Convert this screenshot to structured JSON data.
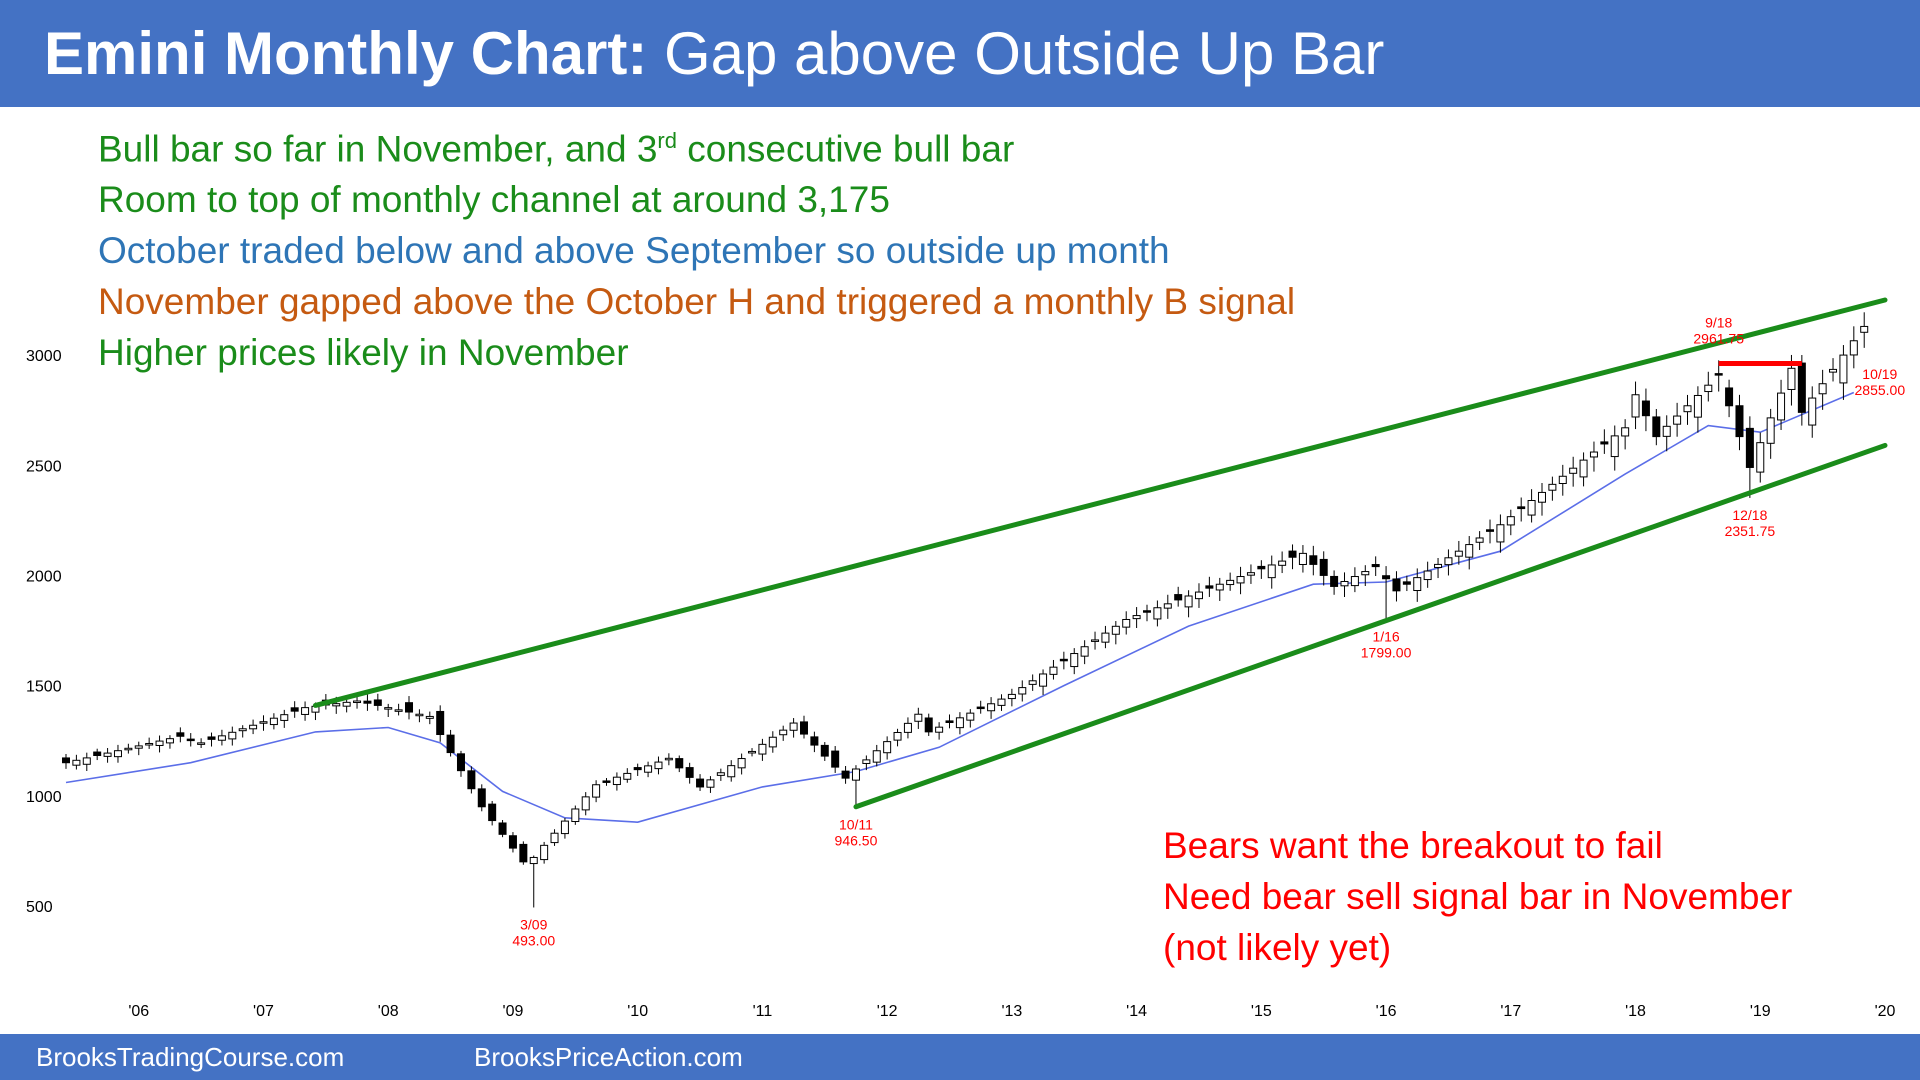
{
  "header": {
    "title_bold": "Emini Monthly Chart:",
    "title_rest": " Gap above Outside Up Bar"
  },
  "notes": [
    {
      "pre": "Bull bar so far in November, and 3",
      "sup": "rd",
      "post": " consecutive bull bar",
      "color": "#1a8c1a"
    },
    {
      "pre": "Room to top of monthly channel at around 3,175",
      "sup": "",
      "post": "",
      "color": "#1a8c1a"
    },
    {
      "pre": "October traded below and above September so outside up month",
      "sup": "",
      "post": "",
      "color": "#2e75b6"
    },
    {
      "pre": "November gapped above the October H and triggered a monthly B signal",
      "sup": "",
      "post": "",
      "color": "#c55a11"
    },
    {
      "pre": "Higher prices likely in November",
      "sup": "",
      "post": "",
      "color": "#1a8c1a"
    }
  ],
  "bears": [
    "Bears want the breakout to fail",
    "Need bear sell signal bar in November",
    "(not likely yet)"
  ],
  "footer": {
    "left": "BrooksTradingCourse.com",
    "right": "BrooksPriceAction.com"
  },
  "chart_data": {
    "type": "candlestick",
    "x_unit": "month",
    "x_range": [
      "2005-06",
      "2020-01"
    ],
    "ylim": [
      300,
      3250
    ],
    "yticks": [
      500,
      1000,
      1500,
      2000,
      2500,
      3000
    ],
    "xticks": [
      {
        "label": "'06",
        "date": "2006-01"
      },
      {
        "label": "'07",
        "date": "2007-01"
      },
      {
        "label": "'08",
        "date": "2008-01"
      },
      {
        "label": "'09",
        "date": "2009-01"
      },
      {
        "label": "'10",
        "date": "2010-01"
      },
      {
        "label": "'11",
        "date": "2011-01"
      },
      {
        "label": "'12",
        "date": "2012-01"
      },
      {
        "label": "'13",
        "date": "2013-01"
      },
      {
        "label": "'14",
        "date": "2014-01"
      },
      {
        "label": "'15",
        "date": "2015-01"
      },
      {
        "label": "'16",
        "date": "2016-01"
      },
      {
        "label": "'17",
        "date": "2017-01"
      },
      {
        "label": "'18",
        "date": "2018-01"
      },
      {
        "label": "'19",
        "date": "2019-01"
      },
      {
        "label": "'20",
        "date": "2020-01"
      }
    ],
    "close_path": [
      [
        "2005-06",
        1150
      ],
      [
        "2006-05",
        1270
      ],
      [
        "2006-07",
        1240
      ],
      [
        "2007-05",
        1400
      ],
      [
        "2007-10",
        1430
      ],
      [
        "2008-05",
        1360
      ],
      [
        "2008-10",
        950
      ],
      [
        "2009-02",
        700
      ],
      [
        "2009-03",
        720
      ],
      [
        "2009-09",
        1050
      ],
      [
        "2010-04",
        1170
      ],
      [
        "2010-07",
        1040
      ],
      [
        "2011-04",
        1330
      ],
      [
        "2011-09",
        1080
      ],
      [
        "2012-04",
        1370
      ],
      [
        "2012-05",
        1290
      ],
      [
        "2013-01",
        1460
      ],
      [
        "2013-12",
        1800
      ],
      [
        "2014-09",
        1960
      ],
      [
        "2015-05",
        2100
      ],
      [
        "2015-08",
        1950
      ],
      [
        "2015-12",
        2040
      ],
      [
        "2016-02",
        1930
      ],
      [
        "2016-12",
        2230
      ],
      [
        "2017-12",
        2670
      ],
      [
        "2018-01",
        2820
      ],
      [
        "2018-03",
        2630
      ],
      [
        "2018-09",
        2910
      ],
      [
        "2018-12",
        2490
      ],
      [
        "2019-04",
        2940
      ],
      [
        "2019-05",
        2740
      ],
      [
        "2019-11",
        3130
      ]
    ],
    "moving_average_path": [
      [
        "2005-06",
        1060
      ],
      [
        "2006-06",
        1150
      ],
      [
        "2007-06",
        1290
      ],
      [
        "2008-01",
        1310
      ],
      [
        "2008-06",
        1240
      ],
      [
        "2008-12",
        1020
      ],
      [
        "2009-06",
        900
      ],
      [
        "2010-01",
        880
      ],
      [
        "2011-01",
        1040
      ],
      [
        "2011-10",
        1110
      ],
      [
        "2012-06",
        1220
      ],
      [
        "2013-06",
        1500
      ],
      [
        "2014-06",
        1770
      ],
      [
        "2015-06",
        1960
      ],
      [
        "2016-01",
        1970
      ],
      [
        "2016-12",
        2110
      ],
      [
        "2017-12",
        2460
      ],
      [
        "2018-08",
        2680
      ],
      [
        "2019-01",
        2650
      ],
      [
        "2019-10",
        2830
      ]
    ],
    "channel_lines": [
      {
        "name": "upper",
        "color": "#1a8c1a",
        "from": [
          "2007-06",
          1410
        ],
        "to": [
          "2020-01",
          3250
        ]
      },
      {
        "name": "lower",
        "color": "#1a8c1a",
        "from": [
          "2011-10",
          950
        ],
        "to": [
          "2020-01",
          2590
        ]
      }
    ],
    "resistance_line": {
      "color": "#ff0000",
      "from": [
        "2018-09",
        2961.75
      ],
      "to": [
        "2019-05",
        2961.75
      ]
    },
    "annotations": [
      {
        "date": "2009-03",
        "label": "3/09",
        "value": "493.00",
        "y": 493,
        "pos": "below"
      },
      {
        "date": "2011-10",
        "label": "10/11",
        "value": "946.50",
        "y": 946.5,
        "pos": "below"
      },
      {
        "date": "2016-01",
        "label": "1/16",
        "value": "1799.00",
        "y": 1799,
        "pos": "below"
      },
      {
        "date": "2018-12",
        "label": "12/18",
        "value": "2351.75",
        "y": 2351.75,
        "pos": "below"
      },
      {
        "date": "2018-09",
        "label": "9/18",
        "value": "2961.75",
        "y": 2961.75,
        "pos": "above"
      },
      {
        "date": "2019-10",
        "label": "10/19",
        "value": "2855.00",
        "y": 2855,
        "pos": "right"
      }
    ],
    "colors": {
      "bull_candle_body": "#ffffff",
      "bear_candle_body": "#000000",
      "wick": "#000000",
      "moving_average": "#5b6ee8",
      "annotation_text": "#ff0000",
      "axis_text": "#000000"
    }
  }
}
